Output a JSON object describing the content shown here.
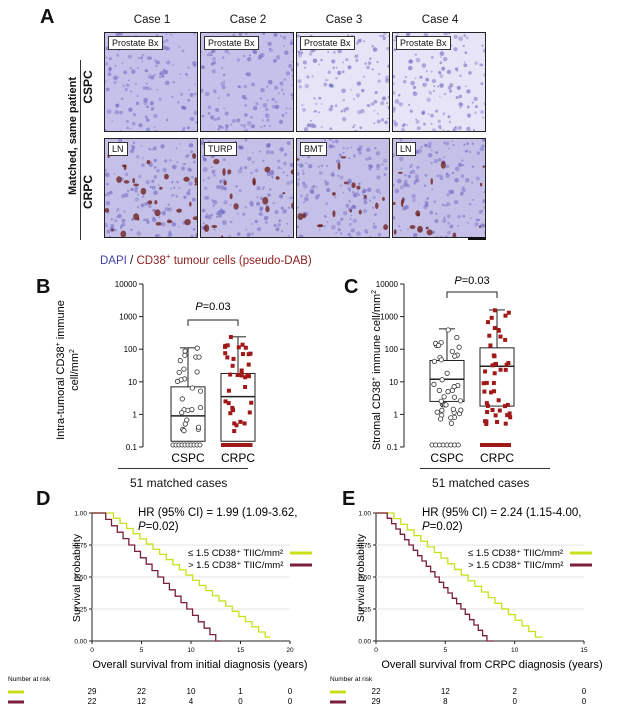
{
  "panel_a": {
    "label": "A",
    "cases": [
      "Case 1",
      "Case 2",
      "Case 3",
      "Case 4"
    ],
    "side_label": "Matched, same patient",
    "rows": [
      {
        "name": "CSPC",
        "tiles": [
          "Prostate Bx",
          "Prostate Bx",
          "Prostate Bx",
          "Prostate Bx"
        ]
      },
      {
        "name": "CRPC",
        "tiles": [
          "LN",
          "TURP",
          "BMT",
          "LN"
        ]
      }
    ],
    "caption_dapi": "DAPI",
    "caption_sep": " / ",
    "caption_cd38": "CD38",
    "caption_sup": "+",
    "caption_rest": " tumour cells (pseudo-DAB)",
    "colors": {
      "dapi": "#3f3fb0",
      "cd38": "#8a1c1c",
      "tissue": "#c9c6ec"
    }
  },
  "panel_b": {
    "label": "B",
    "ylabel": "Intra-tumoral CD38+ immune cell/mm2",
    "ylabel_line1": "Intra-tumoral CD38",
    "ylabel_sup": "+",
    "ylabel_line1b": " immune",
    "ylabel_line2": "cell/mm",
    "ylabel_sup2": "2",
    "yticks": [
      "0.1",
      "1",
      "10",
      "100",
      "1000",
      "10000"
    ],
    "categories": [
      "CSPC",
      "CRPC"
    ],
    "pvalue": "P=0.03",
    "p_italic": "P",
    "p_rest": "=0.03",
    "footer": "51 matched cases"
  },
  "panel_c": {
    "label": "C",
    "ylabel_line1": "Stromal CD38",
    "ylabel_sup": "+",
    "ylabel_line1b": " immune cell/mm",
    "ylabel_sup2": "2",
    "yticks": [
      "0.1",
      "1",
      "10",
      "100",
      "1000",
      "10000"
    ],
    "categories": [
      "CSPC",
      "CRPC"
    ],
    "p_italic": "P",
    "p_rest": "=0.03",
    "footer": "51 matched cases"
  },
  "panel_d": {
    "label": "D",
    "hr_line1": "HR (95% CI) = 1.99 (1.09-3.62,",
    "hr_line2_italic": "P",
    "hr_line2_rest": "=0.02)",
    "legend_low": "≤ 1.5 CD38⁺ TIIC/mm²",
    "legend_high": "> 1.5 CD38⁺ TIIC/mm²",
    "ylabel": "Survival probability",
    "xlabel": "Overall survival from initial diagnosis (years)",
    "yticks": [
      "0.00",
      "0.25",
      "0.50",
      "0.75",
      "1.00"
    ],
    "xticks": [
      "0",
      "5",
      "10",
      "15",
      "20"
    ],
    "risk_title": "Number at risk",
    "risk_low": [
      "29",
      "22",
      "10",
      "1",
      "0"
    ],
    "risk_high": [
      "22",
      "12",
      "4",
      "0",
      "0"
    ]
  },
  "panel_e": {
    "label": "E",
    "hr_line1": "HR (95% CI) = 2.24 (1.15-4.00,",
    "hr_line2_italic": "P",
    "hr_line2_rest": "=0.02)",
    "legend_low": "≤ 1.5 CD38⁺ TIIC/mm²",
    "legend_high": "> 1.5 CD38⁺ TIIC/mm²",
    "ylabel": "Survival probability",
    "xlabel": "Overall survival from CRPC diagnosis (years)",
    "yticks": [
      "0.00",
      "0.25",
      "0.50",
      "0.75",
      "1.00"
    ],
    "xticks": [
      "0",
      "5",
      "10",
      "15"
    ],
    "risk_title": "Number at risk",
    "risk_low": [
      "22",
      "12",
      "2",
      "0"
    ],
    "risk_high": [
      "29",
      "8",
      "0",
      "0"
    ]
  },
  "colors": {
    "low": "#c8e01c",
    "high": "#7a1e3a",
    "red_point": "#a01818"
  }
}
